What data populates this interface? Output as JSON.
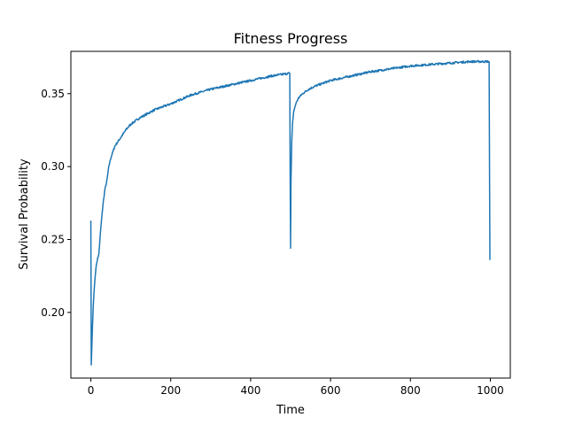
{
  "chart_data": {
    "type": "line",
    "title": "Fitness Progress",
    "xlabel": "Time",
    "ylabel": "Survival Probability",
    "xlim": [
      -50,
      1050
    ],
    "ylim": [
      0.155,
      0.379
    ],
    "xticks": [
      0,
      200,
      400,
      600,
      800,
      1000
    ],
    "yticks": [
      0.2,
      0.25,
      0.3,
      0.35
    ],
    "xtick_labels": [
      "0",
      "200",
      "400",
      "600",
      "800",
      "1000"
    ],
    "ytick_labels": [
      "0.20",
      "0.25",
      "0.30",
      "0.35"
    ],
    "grid": false,
    "series": [
      {
        "color": "#1f77b4",
        "x": [
          0,
          1,
          2,
          4,
          6,
          8,
          10,
          13,
          16,
          20,
          25,
          30,
          35,
          40,
          45,
          50,
          60,
          70,
          80,
          90,
          100,
          120,
          140,
          160,
          180,
          200,
          250,
          300,
          350,
          400,
          450,
          497,
          498,
          499,
          500,
          501,
          503,
          505,
          508,
          512,
          516,
          520,
          530,
          545,
          560,
          580,
          600,
          650,
          700,
          750,
          800,
          850,
          900,
          950,
          997,
          998,
          999
        ],
        "y": [
          0.263,
          0.164,
          0.172,
          0.19,
          0.204,
          0.214,
          0.222,
          0.231,
          0.236,
          0.24,
          0.258,
          0.273,
          0.284,
          0.29,
          0.3,
          0.306,
          0.314,
          0.318,
          0.322,
          0.326,
          0.329,
          0.333,
          0.336,
          0.339,
          0.341,
          0.343,
          0.349,
          0.353,
          0.356,
          0.359,
          0.362,
          0.364,
          0.364,
          0.29,
          0.244,
          0.29,
          0.318,
          0.33,
          0.338,
          0.342,
          0.345,
          0.347,
          0.35,
          0.353,
          0.355,
          0.357,
          0.359,
          0.362,
          0.365,
          0.367,
          0.369,
          0.37,
          0.371,
          0.372,
          0.372,
          0.3,
          0.236
        ]
      }
    ]
  }
}
